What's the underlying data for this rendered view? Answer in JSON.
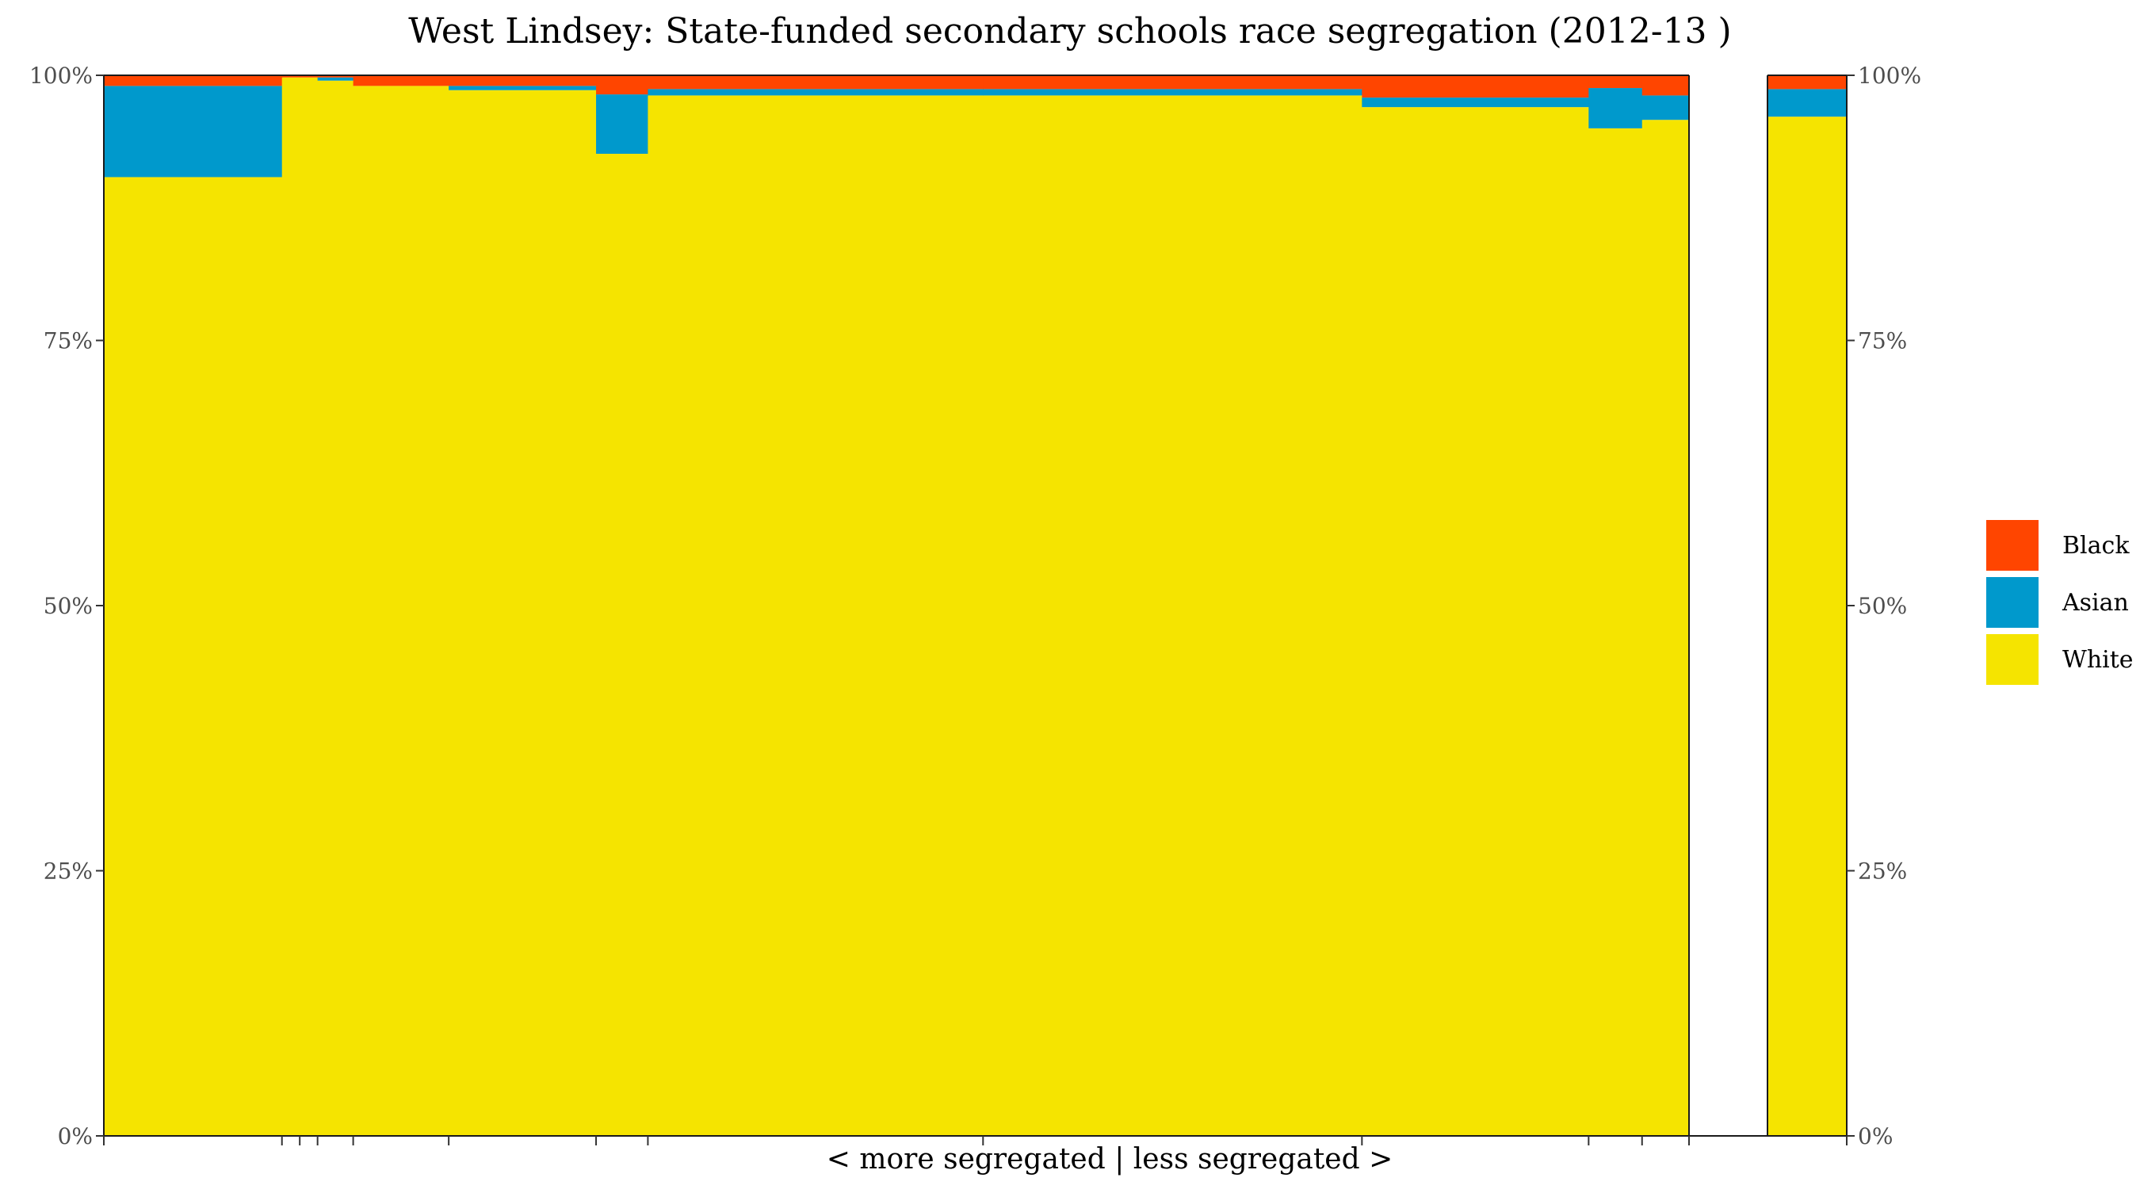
{
  "chart_data": {
    "type": "bar",
    "title": "West Lindsey: State-funded secondary schools race segregation (2012-13 )",
    "xlabel": "< more segregated | less segregated >",
    "ylabel": "",
    "ylim": [
      0,
      100
    ],
    "y_ticks": [
      "0%",
      "25%",
      "50%",
      "75%",
      "100%"
    ],
    "variable_width": true,
    "stacked": true,
    "grid": false,
    "legend_position": "right",
    "colors": {
      "Black": "#FF4500",
      "Asian": "#0099CC",
      "White": "#F5E400"
    },
    "legend": [
      "Black",
      "Asian",
      "White"
    ],
    "schools_widths": [
      11.0,
      1.1,
      1.1,
      2.2,
      5.9,
      9.1,
      3.2,
      20.7,
      23.4,
      14.0,
      3.3,
      2.9
    ],
    "series": [
      {
        "name": "White",
        "values": [
          90.4,
          99.8,
          99.8,
          99.5,
          99.0,
          98.6,
          92.6,
          98.1,
          98.1,
          97.0,
          95.0,
          95.8
        ]
      },
      {
        "name": "Asian",
        "values": [
          8.6,
          0.0,
          0.0,
          0.3,
          0.0,
          0.4,
          5.6,
          0.6,
          0.6,
          0.9,
          3.8,
          2.3
        ]
      },
      {
        "name": "Black",
        "values": [
          1.0,
          0.2,
          0.2,
          0.2,
          1.0,
          1.0,
          1.8,
          1.3,
          1.3,
          2.1,
          1.2,
          1.9
        ]
      }
    ],
    "total_bar": {
      "White": 96.1,
      "Asian": 2.6,
      "Black": 1.3
    }
  }
}
